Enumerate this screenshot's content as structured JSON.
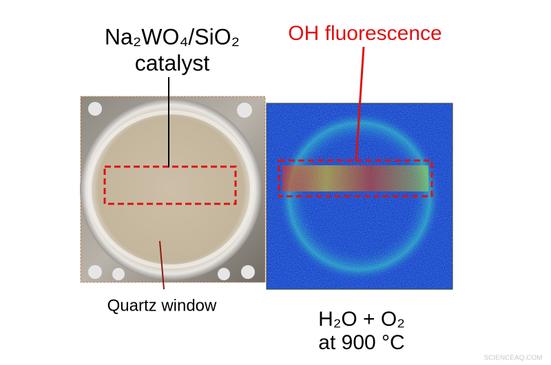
{
  "labels": {
    "catalyst_formula": "Na₂WO₄/SiO₂",
    "catalyst_word": "catalyst",
    "fluorescence": "OH fluorescence",
    "window": "Quartz window",
    "reactants": "H₂O + O₂",
    "temperature": "at 900 °C",
    "watermark": "SCIENCEAQ.COM"
  }
}
